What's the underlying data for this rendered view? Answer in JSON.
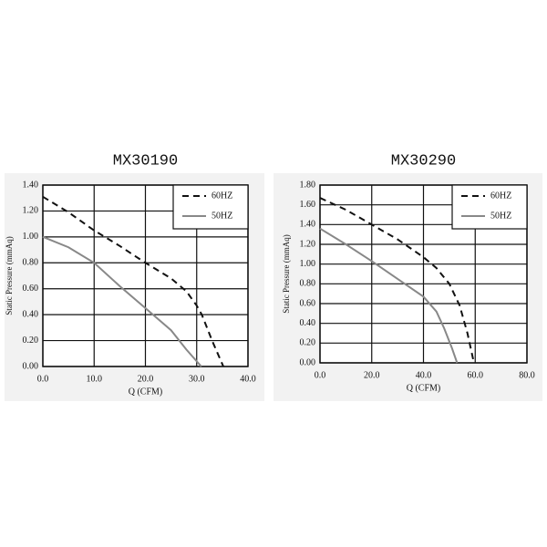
{
  "chart_data": [
    {
      "type": "line",
      "title": "MX30190",
      "xlabel": "Q (CFM)",
      "ylabel": "Static Pressure (mmAq)",
      "xlim": [
        0,
        40
      ],
      "ylim": [
        0,
        1.4
      ],
      "xticks": [
        {
          "value": 0,
          "label": "0.0"
        },
        {
          "value": 10,
          "label": "10.0"
        },
        {
          "value": 20,
          "label": "20.0"
        },
        {
          "value": 30,
          "label": "30.0"
        },
        {
          "value": 40,
          "label": "40.0"
        }
      ],
      "yticks": [
        {
          "value": 0,
          "label": "0.00"
        },
        {
          "value": 0.2,
          "label": "0.20"
        },
        {
          "value": 0.4,
          "label": "0.40"
        },
        {
          "value": 0.6,
          "label": "0.60"
        },
        {
          "value": 0.8,
          "label": "0.80"
        },
        {
          "value": 1.0,
          "label": "1.00"
        },
        {
          "value": 1.2,
          "label": "1.20"
        },
        {
          "value": 1.4,
          "label": "1.40"
        }
      ],
      "grid": true,
      "legend": "upper right",
      "series": [
        {
          "name": "60HZ",
          "color": "#111111",
          "style": "dashed",
          "x": [
            0,
            5,
            10,
            15,
            20,
            25,
            28,
            30,
            31,
            33,
            35.2
          ],
          "values": [
            1.31,
            1.19,
            1.05,
            0.93,
            0.8,
            0.68,
            0.58,
            0.47,
            0.4,
            0.2,
            0
          ]
        },
        {
          "name": "50HZ",
          "color": "#888888",
          "style": "solid",
          "x": [
            0,
            5,
            10,
            15,
            20,
            25,
            28,
            30.9
          ],
          "values": [
            1.0,
            0.92,
            0.8,
            0.62,
            0.45,
            0.28,
            0.13,
            0
          ]
        }
      ]
    },
    {
      "type": "line",
      "title": "MX30290",
      "xlabel": "Q (CFM)",
      "ylabel": "Static Pressure (mmAq)",
      "xlim": [
        0,
        80
      ],
      "ylim": [
        0,
        1.8
      ],
      "xticks": [
        {
          "value": 0,
          "label": "0.0"
        },
        {
          "value": 20,
          "label": "20.0"
        },
        {
          "value": 40,
          "label": "40.0"
        },
        {
          "value": 60,
          "label": "60.0"
        },
        {
          "value": 80,
          "label": "80.0"
        }
      ],
      "yticks": [
        {
          "value": 0,
          "label": "0.00"
        },
        {
          "value": 0.2,
          "label": "0.20"
        },
        {
          "value": 0.4,
          "label": "0.40"
        },
        {
          "value": 0.6,
          "label": "0.60"
        },
        {
          "value": 0.8,
          "label": "0.80"
        },
        {
          "value": 1.0,
          "label": "1.00"
        },
        {
          "value": 1.2,
          "label": "1.20"
        },
        {
          "value": 1.4,
          "label": "1.40"
        },
        {
          "value": 1.6,
          "label": "1.60"
        },
        {
          "value": 1.8,
          "label": "1.80"
        }
      ],
      "grid": true,
      "legend": "upper right",
      "series": [
        {
          "name": "60HZ",
          "color": "#111111",
          "style": "dashed",
          "x": [
            0,
            10,
            20,
            30,
            40,
            45,
            50,
            54,
            57,
            59.5
          ],
          "values": [
            1.67,
            1.55,
            1.4,
            1.25,
            1.07,
            0.96,
            0.8,
            0.58,
            0.3,
            0
          ]
        },
        {
          "name": "50HZ",
          "color": "#888888",
          "style": "solid",
          "x": [
            0,
            10,
            20,
            30,
            40,
            45,
            48,
            51,
            53
          ],
          "values": [
            1.36,
            1.2,
            1.03,
            0.85,
            0.67,
            0.52,
            0.35,
            0.15,
            0
          ]
        }
      ]
    }
  ]
}
